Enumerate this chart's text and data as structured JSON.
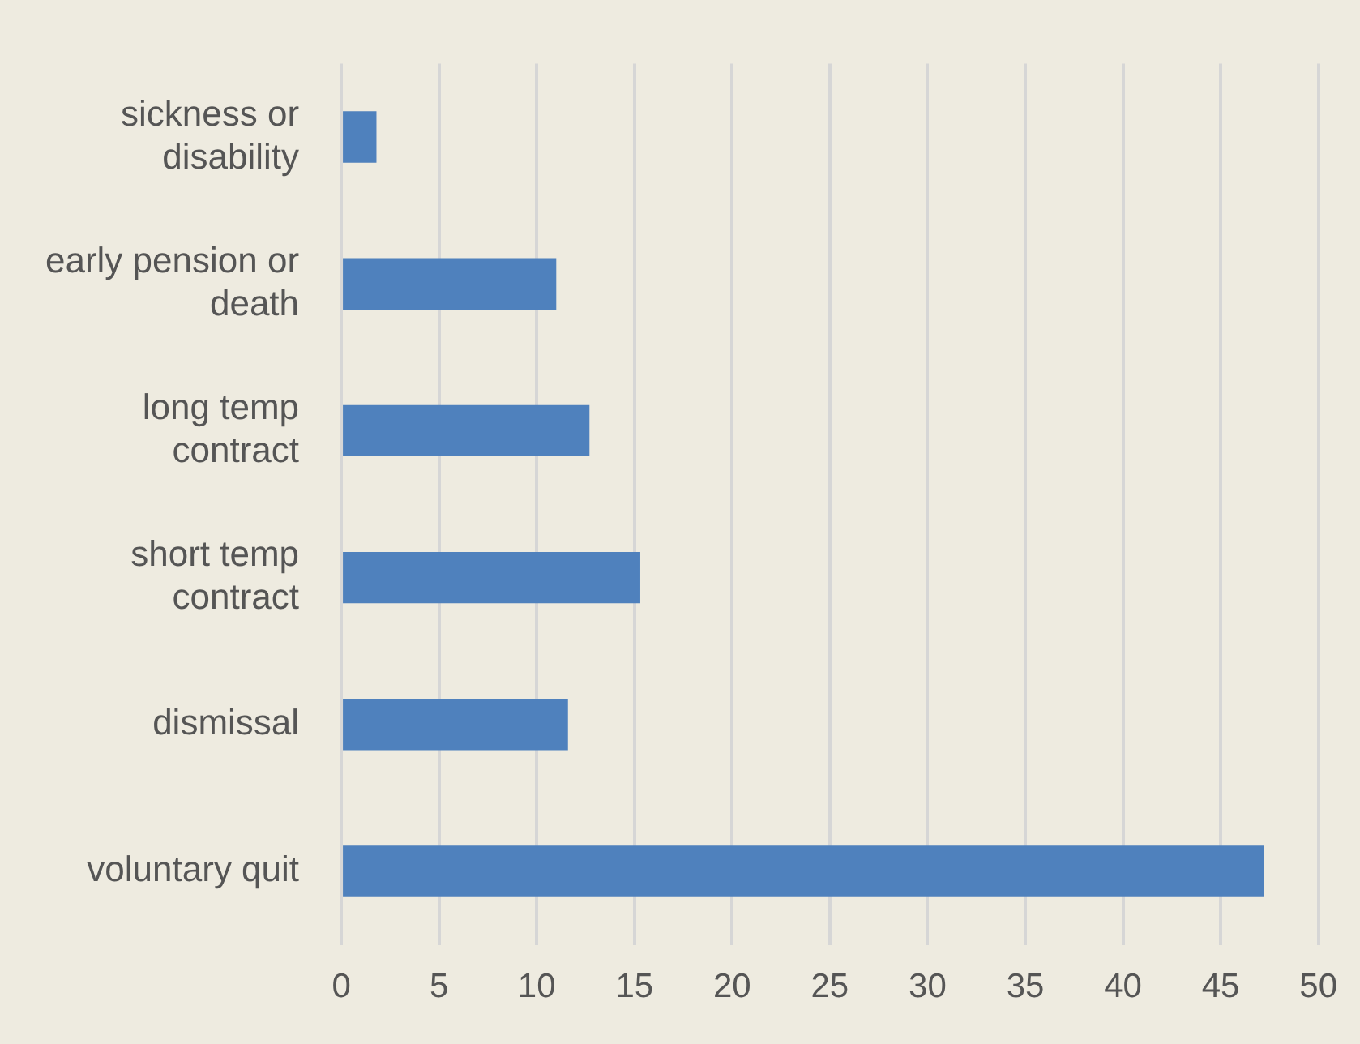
{
  "chart_data": {
    "type": "bar",
    "orientation": "horizontal",
    "categories": [
      "sickness or disability",
      "early pension or death",
      "long temp contract",
      "short temp contract",
      "dismissal",
      "voluntary quit"
    ],
    "values": [
      1.8,
      11.0,
      12.7,
      15.3,
      11.6,
      47.2
    ],
    "color": "#4f81bd",
    "xlim": [
      0,
      50
    ],
    "xticks": [
      0,
      5,
      10,
      15,
      20,
      25,
      30,
      35,
      40,
      45,
      50
    ],
    "grid": "x",
    "legend": false
  }
}
